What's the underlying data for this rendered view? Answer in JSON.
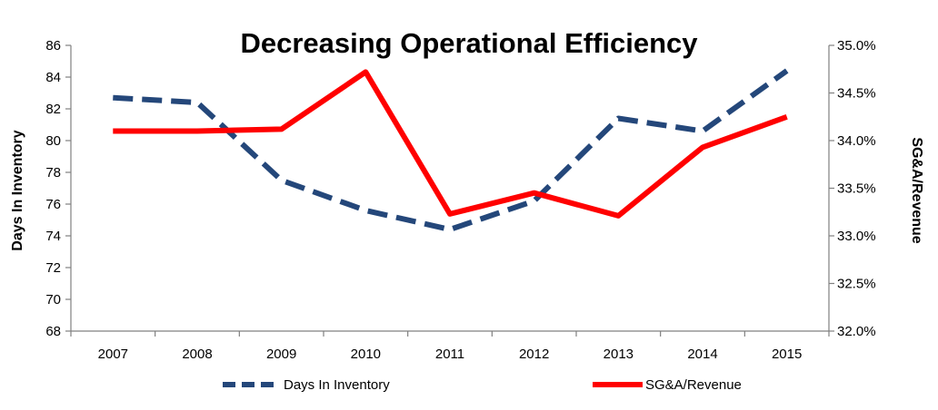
{
  "chart_data": {
    "type": "line",
    "title": "Decreasing Operational Efficiency",
    "xlabel": "",
    "categories": [
      "2007",
      "2008",
      "2009",
      "2010",
      "2011",
      "2012",
      "2013",
      "2014",
      "2015"
    ],
    "y_left": {
      "label": "Days In Inventory",
      "range": [
        68,
        86
      ],
      "ticks": [
        "68",
        "70",
        "72",
        "74",
        "76",
        "78",
        "80",
        "82",
        "84",
        "86"
      ]
    },
    "y_right": {
      "label": "SG&A/Revenue",
      "range": [
        32.0,
        35.0
      ],
      "ticks": [
        "32.0%",
        "32.5%",
        "33.0%",
        "33.5%",
        "34.0%",
        "34.5%",
        "35.0%"
      ]
    },
    "series": [
      {
        "name": "Days In Inventory",
        "axis": "left",
        "color": "#24477a",
        "style": "dashed",
        "values": [
          82.7,
          82.4,
          77.5,
          75.6,
          74.4,
          76.2,
          81.4,
          80.6,
          84.4
        ]
      },
      {
        "name": "SG&A/Revenue",
        "axis": "right",
        "color": "#ff0000",
        "style": "solid",
        "values": [
          34.1,
          34.1,
          34.12,
          34.72,
          33.23,
          33.45,
          33.21,
          33.93,
          34.25
        ]
      }
    ],
    "grid": false,
    "legend_position": "bottom"
  }
}
